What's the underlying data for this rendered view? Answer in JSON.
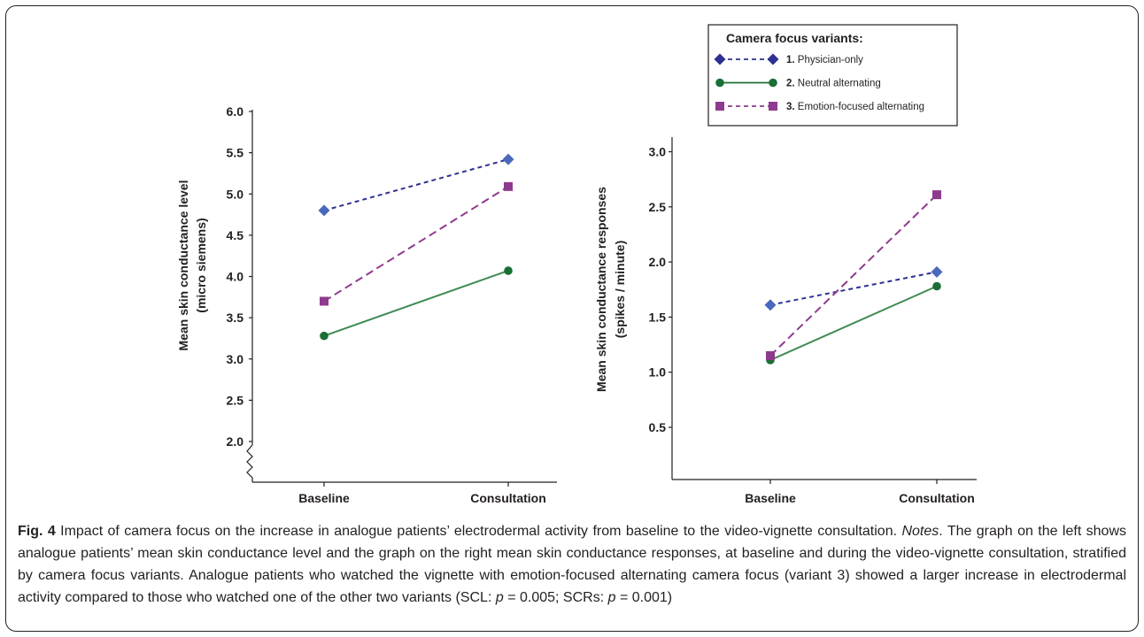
{
  "chart_data": [
    {
      "type": "line",
      "categories": [
        "Baseline",
        "Consultation"
      ],
      "ylabel": [
        "Mean skin conductance level",
        "(micro siemens)"
      ],
      "yticks": [
        "2.0",
        "2.5",
        "3.0",
        "3.5",
        "4.0",
        "4.5",
        "5.0",
        "5.5",
        "6.0"
      ],
      "ylim": [
        2.0,
        6.0
      ],
      "axis_break": true,
      "series": [
        {
          "name": "Physician-only",
          "values": [
            4.8,
            5.42
          ],
          "color": "#4a69bd",
          "line": "#2e3192",
          "marker": "diamond",
          "dash": "5,4"
        },
        {
          "name": "Neutral alternating",
          "values": [
            3.28,
            4.07
          ],
          "color": "#1b6f35",
          "line": "#3f8a52",
          "marker": "circle",
          "dash": ""
        },
        {
          "name": "Emotion-focused alternating",
          "values": [
            3.7,
            5.09
          ],
          "color": "#8e3a8e",
          "line": "#8e3a8e",
          "marker": "square",
          "dash": "9,5"
        }
      ]
    },
    {
      "type": "line",
      "categories": [
        "Baseline",
        "Consultation"
      ],
      "ylabel": [
        "Mean skin conductance responses",
        "(spikes / minute)"
      ],
      "yticks": [
        "0.5",
        "1.0",
        "1.5",
        "2.0",
        "2.5",
        "3.0"
      ],
      "ylim": [
        0.0,
        3.0
      ],
      "axis_break": false,
      "series": [
        {
          "name": "Physician-only",
          "values": [
            1.61,
            1.91
          ],
          "color": "#4a69bd",
          "line": "#2e3192",
          "marker": "diamond",
          "dash": "5,4"
        },
        {
          "name": "Neutral alternating",
          "values": [
            1.11,
            1.78
          ],
          "color": "#1b6f35",
          "line": "#3f8a52",
          "marker": "circle",
          "dash": ""
        },
        {
          "name": "Emotion-focused alternating",
          "values": [
            1.15,
            2.61
          ],
          "color": "#8e3a8e",
          "line": "#8e3a8e",
          "marker": "square",
          "dash": "9,5"
        }
      ]
    }
  ],
  "legend": {
    "title": "Camera focus variants:",
    "items": [
      {
        "num": "1.",
        "label": "Physician-only"
      },
      {
        "num": "2.",
        "label": "Neutral alternating"
      },
      {
        "num": "3.",
        "label": "Emotion-focused alternating"
      }
    ]
  },
  "caption": {
    "fig_label": "Fig. 4",
    "title": " Impact of camera focus on the increase in analogue patients’ electrodermal activity from baseline to the video-vignette consultation.",
    "notes_label": "Notes",
    "notes_text": ". The graph on the left shows analogue patients’ mean skin conductance level and the graph on the right mean skin conductance responses, at baseline and during the video-vignette consultation, stratified by camera focus variants. Analogue patients who watched the vignette with emotion-focused alternating camera focus (variant 3) showed a larger increase in electrodermal activity compared to those who watched one of the other two variants (SCL: ",
    "p1_var": "p",
    "p1_text": " = 0.005; SCRs: ",
    "p2_var": "p",
    "p2_text": " = 0.001)"
  }
}
